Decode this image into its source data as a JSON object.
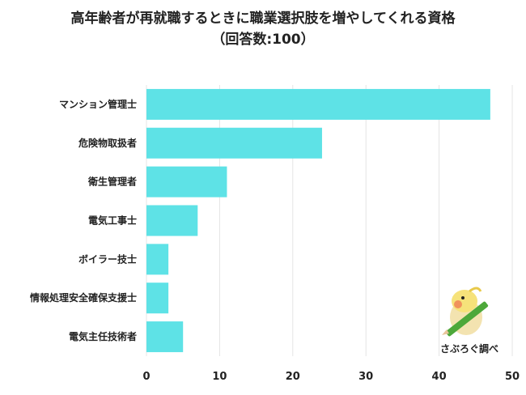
{
  "chart_data": {
    "type": "bar",
    "orientation": "horizontal",
    "title": "高年齢者が再就職するときに職業選択肢を増やしてくれる資格",
    "subtitle": "（回答数:100）",
    "categories": [
      "マンション管理士",
      "危険物取扱者",
      "衛生管理者",
      "電気工事士",
      "ボイラー技士",
      "情報処理安全確保支援士",
      "電気主任技術者"
    ],
    "values": [
      47,
      24,
      11,
      7,
      3,
      3,
      5
    ],
    "xlim": [
      0,
      50
    ],
    "xticks": [
      0,
      10,
      20,
      30,
      40,
      50
    ],
    "grid": true,
    "bar_color": "#5ee2e6"
  },
  "logo": {
    "text": "さぶろぐ調べ"
  }
}
